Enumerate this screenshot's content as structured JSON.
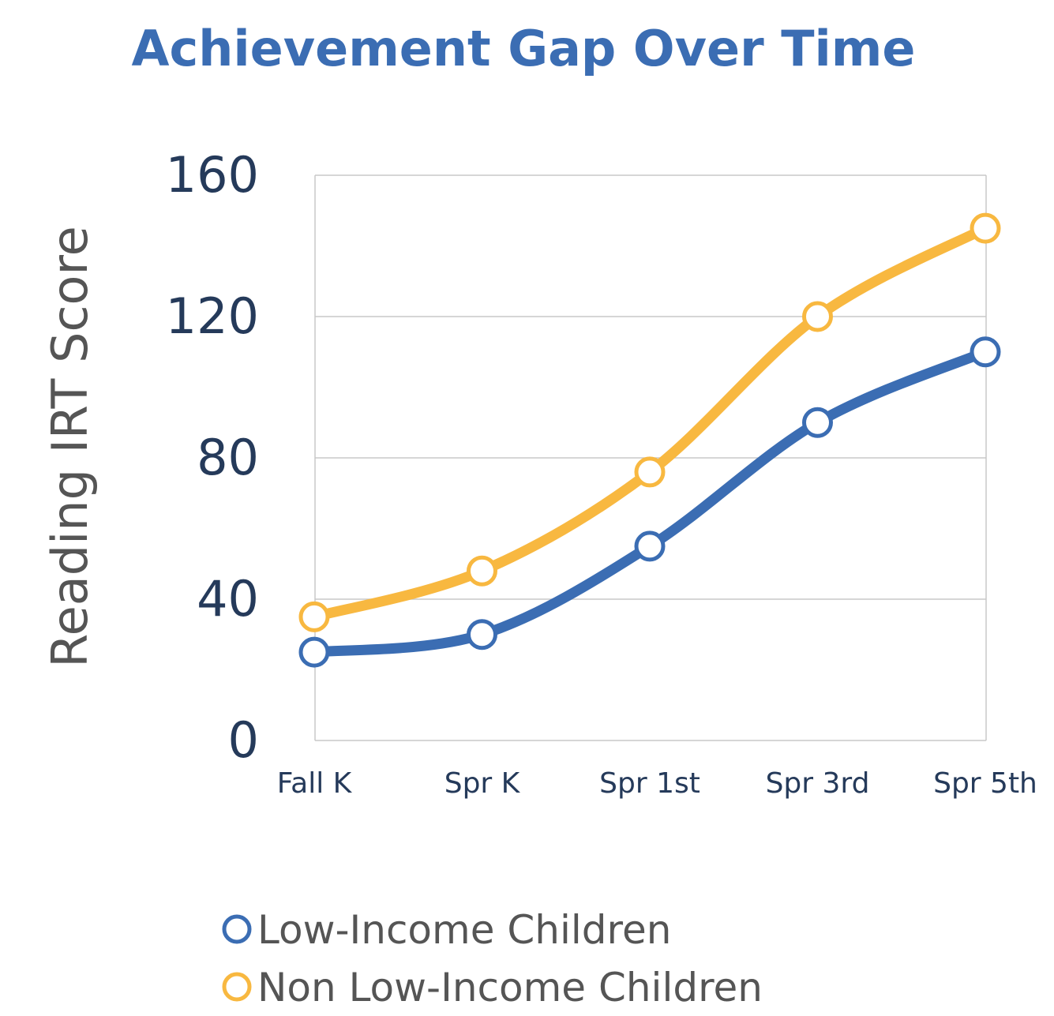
{
  "chart_data": {
    "type": "line",
    "title": "Achievement Gap Over Time",
    "xlabel": "",
    "ylabel": "Reading IRT Score",
    "categories": [
      "Fall K",
      "Spr K",
      "Spr 1st",
      "Spr 3rd",
      "Spr 5th"
    ],
    "ylim": [
      0,
      160
    ],
    "yticks": [
      "0",
      "40",
      "80",
      "120",
      "160"
    ],
    "grid": true,
    "legend_position": "bottom-left",
    "series": [
      {
        "name": "Low-Income Children",
        "values": [
          25,
          30,
          55,
          90,
          110
        ],
        "color": "#3b6db3"
      },
      {
        "name": "Non Low-Income Children",
        "values": [
          35,
          48,
          76,
          120,
          145
        ],
        "color": "#f8b840"
      }
    ],
    "colors": {
      "title": "#3b6db3",
      "ytick": "#253a5a",
      "xtick": "#253a5a",
      "ylabel": "#555555",
      "legend_text": "#555555",
      "grid": "#c8c8c8"
    }
  }
}
